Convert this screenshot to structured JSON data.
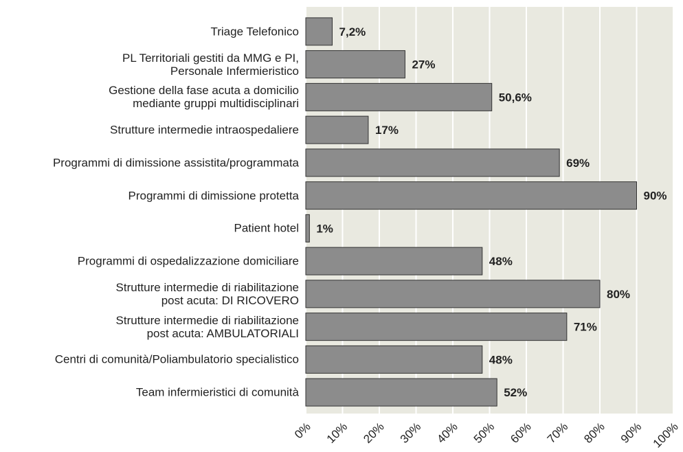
{
  "chart_data": {
    "type": "bar",
    "orientation": "horizontal",
    "categories": [
      "Triage Telefonico",
      "PL Territoriali gestiti da MMG e PI,\nPersonale Infermieristico",
      "Gestione della fase acuta a domicilio\nmediante gruppi multidisciplinari",
      "Strutture intermedie intraospedaliere",
      "Programmi di dimissione assistita/programmata",
      "Programmi di dimissione protetta",
      "Patient hotel",
      "Programmi di ospedalizzazione domiciliare",
      "Strutture intermedie di riabilitazione\npost acuta: DI RICOVERO",
      "Strutture intermedie di riabilitazione\npost acuta: AMBULATORIALI",
      "Centri di comunità/Poliambulatorio specialistico",
      "Team infermieristici di comunità"
    ],
    "values": [
      7.2,
      27,
      50.6,
      17,
      69,
      90,
      1,
      48,
      80,
      71,
      48,
      52
    ],
    "value_labels": [
      "7,2%",
      "27%",
      "50,6%",
      "17%",
      "69%",
      "90%",
      "1%",
      "48%",
      "80%",
      "71%",
      "48%",
      "52%"
    ],
    "color": "#8c8c8c",
    "xlim": [
      0,
      100
    ],
    "xticks": [
      {
        "value": 0,
        "label": "0%"
      },
      {
        "value": 10,
        "label": "10%"
      },
      {
        "value": 20,
        "label": "20%"
      },
      {
        "value": 30,
        "label": "30%"
      },
      {
        "value": 40,
        "label": "40%"
      },
      {
        "value": 50,
        "label": "50%"
      },
      {
        "value": 60,
        "label": "60%"
      },
      {
        "value": 70,
        "label": "70%"
      },
      {
        "value": 80,
        "label": "80%"
      },
      {
        "value": 90,
        "label": "90%"
      },
      {
        "value": 100,
        "label": "100%"
      }
    ],
    "grid": true
  }
}
